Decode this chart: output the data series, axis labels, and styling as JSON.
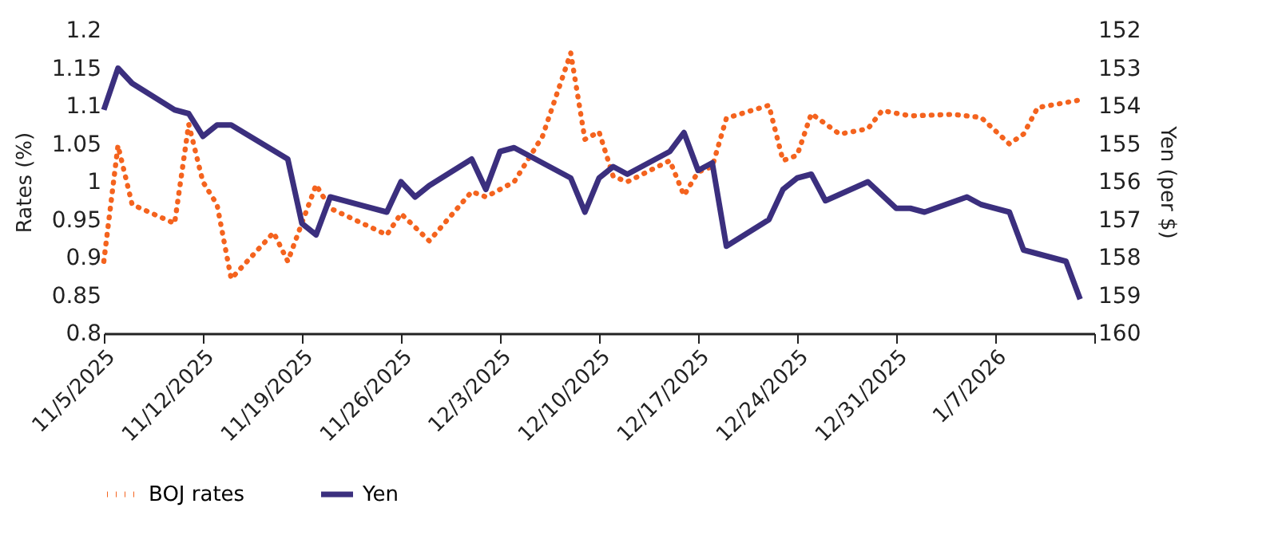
{
  "chart_data": {
    "type": "line",
    "ylabel": "Rates (%)",
    "y2label": "Yen (per $)",
    "xlim": [
      "2025-11-05",
      "2026-01-14"
    ],
    "xticks": [
      {
        "value": "2025-11-05",
        "label": "11/5/2025"
      },
      {
        "value": "2025-11-12",
        "label": "11/12/2025"
      },
      {
        "value": "2025-11-19",
        "label": "11/19/2025"
      },
      {
        "value": "2025-11-26",
        "label": "11/26/2025"
      },
      {
        "value": "2025-12-03",
        "label": "12/3/2025"
      },
      {
        "value": "2025-12-10",
        "label": "12/10/2025"
      },
      {
        "value": "2025-12-17",
        "label": "12/17/2025"
      },
      {
        "value": "2025-12-24",
        "label": "12/24/2025"
      },
      {
        "value": "2025-12-31",
        "label": "12/31/2025"
      },
      {
        "value": "2026-01-07",
        "label": "1/7/2026"
      },
      {
        "value": "2026-01-14",
        "label": null
      }
    ],
    "ylim": [
      0.8,
      1.2
    ],
    "yticks": [
      0.8,
      0.85,
      0.9,
      0.95,
      1,
      1.05,
      1.1,
      1.15,
      1.2
    ],
    "y2lim": [
      160,
      152
    ],
    "y2ticks": [
      152,
      153,
      154,
      155,
      156,
      157,
      158,
      159,
      160
    ],
    "grid": false,
    "legend": "bottom",
    "marker": "none",
    "series": [
      {
        "name": "BOJ rates",
        "color": "#f4631e",
        "line_style": "dotted",
        "x": [
          "2025-11-05",
          "2025-11-06",
          "2025-11-07",
          "2025-11-10",
          "2025-11-11",
          "2025-11-12",
          "2025-11-13",
          "2025-11-14",
          "2025-11-17",
          "2025-11-18",
          "2025-11-20",
          "2025-11-21",
          "2025-11-25",
          "2025-11-26",
          "2025-11-28",
          "2025-12-01",
          "2025-12-02",
          "2025-12-04",
          "2025-12-06",
          "2025-12-08",
          "2025-12-09",
          "2025-12-10",
          "2025-12-11",
          "2025-12-12",
          "2025-12-15",
          "2025-12-16",
          "2025-12-17",
          "2025-12-18",
          "2025-12-19",
          "2025-12-22",
          "2025-12-23",
          "2025-12-24",
          "2025-12-25",
          "2025-12-27",
          "2025-12-29",
          "2025-12-30",
          "2026-01-01",
          "2026-01-04",
          "2026-01-06",
          "2026-01-08",
          "2026-01-09",
          "2026-01-10",
          "2026-01-13"
        ],
        "values": [
          0.895,
          1.048,
          0.97,
          0.945,
          1.076,
          1.0,
          0.97,
          0.872,
          0.933,
          0.895,
          0.996,
          0.965,
          0.93,
          0.958,
          0.922,
          0.987,
          0.98,
          1.0,
          1.06,
          1.17,
          1.056,
          1.066,
          1.007,
          1.0,
          1.028,
          0.982,
          1.013,
          1.02,
          1.084,
          1.101,
          1.028,
          1.035,
          1.09,
          1.063,
          1.07,
          1.094,
          1.087,
          1.089,
          1.085,
          1.05,
          1.063,
          1.098,
          1.108
        ]
      },
      {
        "name": "Yen",
        "color": "#3b2f7e",
        "line_style": "solid",
        "axis": "y2",
        "x": [
          "2025-11-05",
          "2025-11-06",
          "2025-11-07",
          "2025-11-10",
          "2025-11-11",
          "2025-11-12",
          "2025-11-13",
          "2025-11-14",
          "2025-11-18",
          "2025-11-19",
          "2025-11-20",
          "2025-11-21",
          "2025-11-25",
          "2025-11-26",
          "2025-11-27",
          "2025-11-28",
          "2025-12-01",
          "2025-12-02",
          "2025-12-03",
          "2025-12-04",
          "2025-12-08",
          "2025-12-09",
          "2025-12-10",
          "2025-12-11",
          "2025-12-12",
          "2025-12-15",
          "2025-12-16",
          "2025-12-17",
          "2025-12-18",
          "2025-12-19",
          "2025-12-22",
          "2025-12-23",
          "2025-12-24",
          "2025-12-25",
          "2025-12-26",
          "2025-12-29",
          "2025-12-31",
          "2026-01-01",
          "2026-01-02",
          "2026-01-05",
          "2026-01-06",
          "2026-01-08",
          "2026-01-09",
          "2026-01-12",
          "2026-01-13"
        ],
        "values": [
          154.1,
          153.0,
          153.4,
          154.1,
          154.2,
          154.8,
          154.5,
          154.5,
          155.4,
          157.1,
          157.4,
          156.4,
          156.8,
          156.0,
          156.4,
          156.1,
          155.4,
          156.2,
          155.2,
          155.1,
          155.9,
          156.8,
          155.9,
          155.6,
          155.8,
          155.2,
          154.7,
          155.7,
          155.5,
          157.7,
          157.0,
          156.2,
          155.9,
          155.8,
          156.5,
          156.0,
          156.7,
          156.7,
          156.8,
          156.4,
          156.6,
          156.8,
          157.8,
          158.1,
          159.1
        ]
      }
    ]
  }
}
